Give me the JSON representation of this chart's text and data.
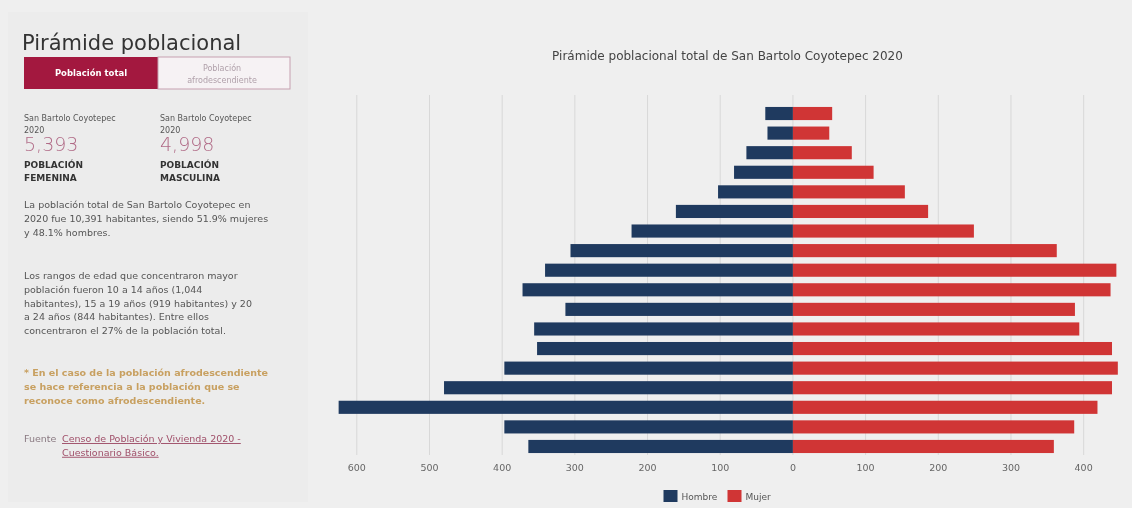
{
  "chart_data": [
    {
      "type": "other",
      "title": "Pirámide poblacional",
      "annotations": [
        "Población total",
        "Población afrodescendiente",
        "San Bartolo Coyotepec 2020",
        "5,393",
        "POBLACIÓN FEMENINA",
        "San Bartolo Coyotepec 2020",
        "4,998",
        "POBLACIÓN MASCULINA",
        "La población total de San Bartolo Coyotepec en 2020 fue 10,391 habitantes, siendo 51.9% mujeres y 48.1% hombres.",
        "Los rangos de edad que concentraron mayor población fueron 10 a 14 años (1,044 habitantes), 15 a 19 años (919 habitantes) y 20 a 24 años (844 habitantes). Entre ellos concentraron el 27% de la población total.",
        "* En el caso de la población afrodescendiente se hace referencia a la población que se reconoce como afrodescendiente.",
        "Fuente",
        "Censo de Población y Vivienda 2020 - Cuestionario Básico."
      ]
    },
    {
      "type": "bar",
      "orientation": "horizontal",
      "stacked": true,
      "title": "Pirámide poblacional total de San Bartolo Coyotepec 2020",
      "categories": [
        null,
        null,
        null,
        null,
        null,
        null,
        null,
        null,
        null,
        null,
        null,
        null,
        null,
        null,
        null,
        null,
        null,
        null
      ],
      "series": [
        {
          "name": "Hombre",
          "color": "#1f3a5f",
          "values": [
            -38,
            -35,
            -64,
            -81,
            -103,
            -161,
            -222,
            -306,
            -341,
            -372,
            -313,
            -356,
            -352,
            -397,
            -480,
            -625,
            -397,
            -364
          ]
        },
        {
          "name": "Mujer",
          "color": "#d03535",
          "values": [
            54,
            50,
            81,
            111,
            154,
            186,
            249,
            363,
            445,
            437,
            388,
            394,
            439,
            447,
            439,
            419,
            387,
            359
          ]
        }
      ],
      "xlim": [
        -630,
        450
      ],
      "xticks": [
        {
          "value": -600,
          "label": "600"
        },
        {
          "value": -500,
          "label": "500"
        },
        {
          "value": -400,
          "label": "400"
        },
        {
          "value": -300,
          "label": "300"
        },
        {
          "value": -200,
          "label": "200"
        },
        {
          "value": -100,
          "label": "100"
        },
        0,
        100,
        200,
        300,
        400
      ],
      "grid": "x",
      "legend": "bottom"
    }
  ]
}
